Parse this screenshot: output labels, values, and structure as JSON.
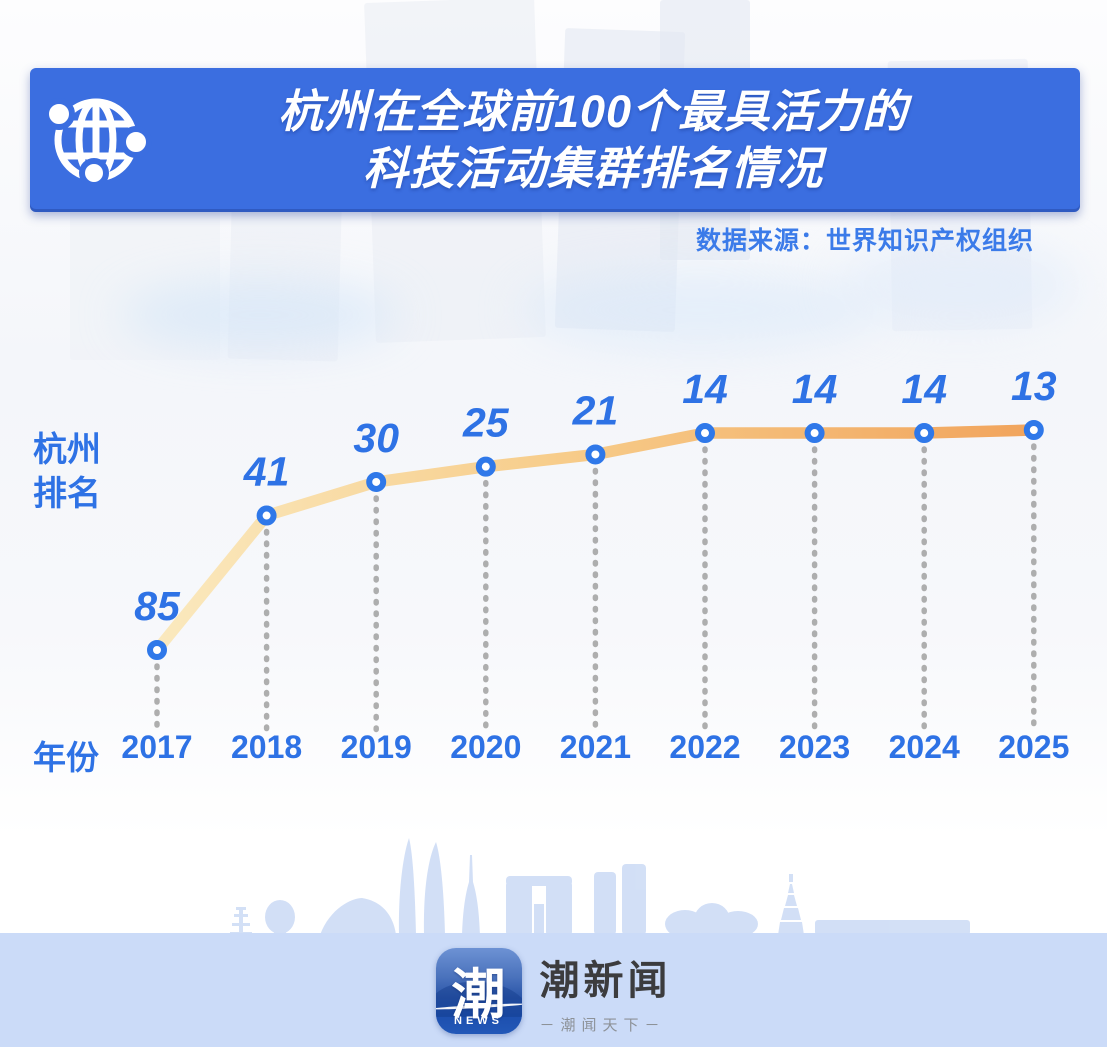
{
  "colors": {
    "banner_bg": "#3b6ee0",
    "source_blue": "#3b7be9",
    "axis_blue": "#2e72e5",
    "skyline_blue": "#cbdaf5",
    "footer_band": "#cbdbf8"
  },
  "header": {
    "icon": "globe-network-icon",
    "title_line1": "杭州在全球前100个最具活力的",
    "title_line2": "科技活动集群排名情况"
  },
  "source": {
    "text": "数据来源：世界知识产权组织"
  },
  "chart_data": {
    "type": "line",
    "title": "杭州在全球前100个最具活力的科技活动集群排名情况",
    "xlabel": "年份",
    "ylabel": "杭州排名",
    "ylabel_lines": [
      "杭州",
      "排名"
    ],
    "x": [
      "2017",
      "2018",
      "2019",
      "2020",
      "2021",
      "2022",
      "2023",
      "2024",
      "2025"
    ],
    "series": [
      {
        "name": "杭州排名",
        "values": [
          85,
          41,
          30,
          25,
          21,
          14,
          14,
          14,
          13
        ]
      }
    ],
    "value_axis_note": "rank number; lower rank (better) is plotted higher",
    "value_range_plotted": [
      13,
      85
    ],
    "grid": "dashed vertical drop lines",
    "legend": "none",
    "style": {
      "line_gradient": [
        "#fae9be",
        "#f7cd8b",
        "#f1a45c"
      ],
      "point_stroke": "#2f78e9",
      "point_fill": "#ffffff",
      "grid_color": "#a6a6a6",
      "label_color": "#2e72e5"
    }
  },
  "footer": {
    "logo_char": "潮",
    "logo_sub": "NEWS",
    "brand": "潮新闻",
    "tagline": "－潮闻天下－"
  }
}
